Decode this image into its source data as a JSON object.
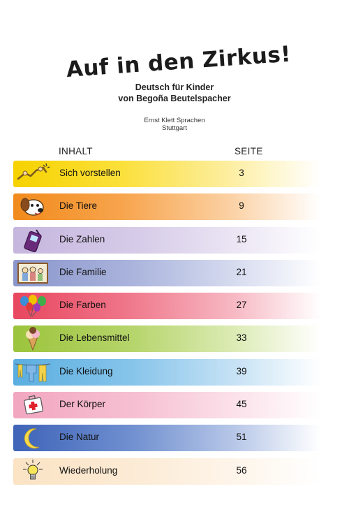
{
  "book": {
    "title": "Auf in den Zirkus!",
    "subtitle_line1": "Deutsch für Kinder",
    "subtitle_line2": "von Begoña Beutelspacher",
    "publisher_line1": "Ernst Klett Sprachen",
    "publisher_line2": "Stuttgart"
  },
  "toc": {
    "header_left": "INHALT",
    "header_right": "SEITE",
    "rows": [
      {
        "label": "Sich vorstellen",
        "page": "3",
        "icon": "handshake-icon",
        "color": "#f6d200"
      },
      {
        "label": "Die Tiere",
        "page": "9",
        "icon": "dog-icon",
        "color": "#f28a1c"
      },
      {
        "label": "Die Zahlen",
        "page": "15",
        "icon": "phone-icon",
        "color": "#c5b6de"
      },
      {
        "label": "Die Familie",
        "page": "21",
        "icon": "family-picture-icon",
        "color": "#8a96cc"
      },
      {
        "label": "Die Farben",
        "page": "27",
        "icon": "balloons-icon",
        "color": "#e8475f"
      },
      {
        "label": "Die Lebensmittel",
        "page": "33",
        "icon": "ice-cream-icon",
        "color": "#9cc43c"
      },
      {
        "label": "Die Kleidung",
        "page": "39",
        "icon": "clothesline-icon",
        "color": "#5aaee0"
      },
      {
        "label": "Der Körper",
        "page": "45",
        "icon": "first-aid-kit-icon",
        "color": "#f2a6c0"
      },
      {
        "label": "Die Natur",
        "page": "51",
        "icon": "moon-icon",
        "color": "#3e63b8"
      },
      {
        "label": "Wiederholung",
        "page": "56",
        "icon": "lightbulb-icon",
        "color": "#fbe3c4"
      }
    ]
  }
}
